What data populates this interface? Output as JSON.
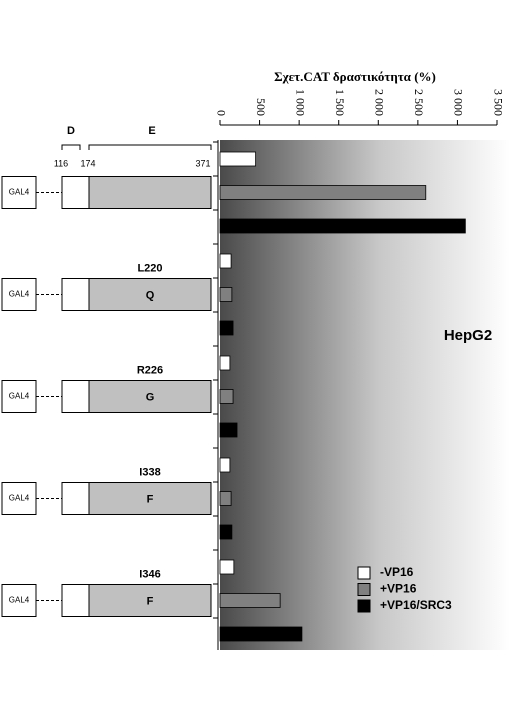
{
  "chart_data": {
    "type": "bar",
    "orientation": "horizontal",
    "title": "Σχετ.CAT δραστικότητα (%)",
    "annotation": "HepG2",
    "categories": [
      null,
      "L220",
      "R226",
      "I338",
      "I346"
    ],
    "substitutions": [
      null,
      "Q",
      "G",
      "F",
      "F"
    ],
    "domains": [
      "D",
      "E"
    ],
    "positions": [
      116,
      174,
      371
    ],
    "gal4_label": "GAL4",
    "series": [
      {
        "name": "-VP16",
        "color": "#ffffff",
        "values": [
          450,
          140,
          125,
          125,
          175
        ]
      },
      {
        "name": "+VP16",
        "color": "#808080",
        "values": [
          2600,
          150,
          165,
          140,
          760
        ]
      },
      {
        "name": "+VP16/SRC3",
        "color": "#000000",
        "values": [
          3100,
          165,
          215,
          150,
          1035
        ]
      }
    ],
    "xlim": [
      0,
      3500
    ],
    "xticks": [
      0,
      500,
      {
        "value": 1000,
        "label": "1 000"
      },
      {
        "value": 1500,
        "label": "1 500"
      },
      {
        "value": 2000,
        "label": "2 000"
      },
      {
        "value": 2500,
        "label": "2 500"
      },
      {
        "value": 3000,
        "label": "3 000"
      },
      {
        "value": 3500,
        "label": "3 500"
      }
    ],
    "legend": "lower-right"
  }
}
